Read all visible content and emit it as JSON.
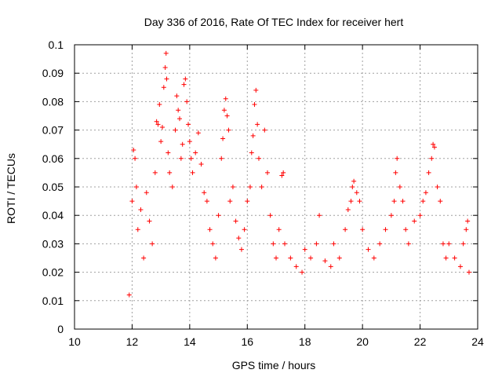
{
  "chart_data": {
    "type": "scatter",
    "title": "Day 336 of 2016, Rate Of TEC Index for receiver hert",
    "xlabel": "GPS time / hours",
    "ylabel": "ROTI / TECUs",
    "xlim": [
      10,
      24
    ],
    "ylim": [
      0,
      0.1
    ],
    "xticks": [
      10,
      12,
      14,
      16,
      18,
      20,
      22,
      24
    ],
    "xtick_labels": [
      "10",
      "12",
      "14",
      "16",
      "18",
      "20",
      "22",
      "24"
    ],
    "yticks": [
      0,
      0.01,
      0.02,
      0.03,
      0.04,
      0.05,
      0.06,
      0.07,
      0.08,
      0.09,
      0.1
    ],
    "ytick_labels": [
      "0",
      "0.01",
      "0.02",
      "0.03",
      "0.04",
      "0.05",
      "0.06",
      "0.07",
      "0.08",
      "0.09",
      "0.1"
    ],
    "grid": true,
    "marker": "plus",
    "series_color": "#ff0000",
    "series": [
      {
        "name": "ROTI",
        "points": [
          [
            11.9,
            0.012
          ],
          [
            12.0,
            0.045
          ],
          [
            12.05,
            0.063
          ],
          [
            12.1,
            0.06
          ],
          [
            12.15,
            0.05
          ],
          [
            12.2,
            0.035
          ],
          [
            12.3,
            0.042
          ],
          [
            12.4,
            0.025
          ],
          [
            12.5,
            0.048
          ],
          [
            12.6,
            0.038
          ],
          [
            12.7,
            0.03
          ],
          [
            12.8,
            0.055
          ],
          [
            12.85,
            0.073
          ],
          [
            12.9,
            0.072
          ],
          [
            12.95,
            0.079
          ],
          [
            13.0,
            0.066
          ],
          [
            13.05,
            0.071
          ],
          [
            13.1,
            0.085
          ],
          [
            13.15,
            0.092
          ],
          [
            13.18,
            0.097
          ],
          [
            13.2,
            0.088
          ],
          [
            13.25,
            0.062
          ],
          [
            13.3,
            0.055
          ],
          [
            13.4,
            0.05
          ],
          [
            13.5,
            0.07
          ],
          [
            13.55,
            0.082
          ],
          [
            13.6,
            0.077
          ],
          [
            13.65,
            0.074
          ],
          [
            13.7,
            0.06
          ],
          [
            13.75,
            0.065
          ],
          [
            13.8,
            0.086
          ],
          [
            13.85,
            0.088
          ],
          [
            13.9,
            0.08
          ],
          [
            13.95,
            0.072
          ],
          [
            14.0,
            0.066
          ],
          [
            14.05,
            0.06
          ],
          [
            14.1,
            0.055
          ],
          [
            14.2,
            0.062
          ],
          [
            14.3,
            0.069
          ],
          [
            14.4,
            0.058
          ],
          [
            14.5,
            0.048
          ],
          [
            14.6,
            0.045
          ],
          [
            14.7,
            0.035
          ],
          [
            14.8,
            0.03
          ],
          [
            14.9,
            0.025
          ],
          [
            15.0,
            0.04
          ],
          [
            15.1,
            0.06
          ],
          [
            15.15,
            0.067
          ],
          [
            15.2,
            0.077
          ],
          [
            15.25,
            0.081
          ],
          [
            15.3,
            0.075
          ],
          [
            15.35,
            0.07
          ],
          [
            15.4,
            0.045
          ],
          [
            15.5,
            0.05
          ],
          [
            15.6,
            0.038
          ],
          [
            15.7,
            0.032
          ],
          [
            15.8,
            0.028
          ],
          [
            15.9,
            0.035
          ],
          [
            16.0,
            0.045
          ],
          [
            16.1,
            0.05
          ],
          [
            16.15,
            0.062
          ],
          [
            16.2,
            0.068
          ],
          [
            16.25,
            0.079
          ],
          [
            16.3,
            0.084
          ],
          [
            16.35,
            0.072
          ],
          [
            16.4,
            0.06
          ],
          [
            16.5,
            0.05
          ],
          [
            16.6,
            0.07
          ],
          [
            16.7,
            0.055
          ],
          [
            16.8,
            0.04
          ],
          [
            16.9,
            0.03
          ],
          [
            17.0,
            0.025
          ],
          [
            17.1,
            0.035
          ],
          [
            17.2,
            0.054
          ],
          [
            17.25,
            0.055
          ],
          [
            17.3,
            0.03
          ],
          [
            17.5,
            0.025
          ],
          [
            17.7,
            0.022
          ],
          [
            17.9,
            0.02
          ],
          [
            18.0,
            0.028
          ],
          [
            18.2,
            0.025
          ],
          [
            18.4,
            0.03
          ],
          [
            18.5,
            0.04
          ],
          [
            18.7,
            0.024
          ],
          [
            18.9,
            0.022
          ],
          [
            19.0,
            0.03
          ],
          [
            19.2,
            0.025
          ],
          [
            19.4,
            0.035
          ],
          [
            19.5,
            0.042
          ],
          [
            19.6,
            0.045
          ],
          [
            19.65,
            0.05
          ],
          [
            19.7,
            0.052
          ],
          [
            19.8,
            0.048
          ],
          [
            19.9,
            0.045
          ],
          [
            20.0,
            0.035
          ],
          [
            20.2,
            0.028
          ],
          [
            20.4,
            0.025
          ],
          [
            20.6,
            0.03
          ],
          [
            20.8,
            0.035
          ],
          [
            21.0,
            0.04
          ],
          [
            21.1,
            0.045
          ],
          [
            21.15,
            0.055
          ],
          [
            21.2,
            0.06
          ],
          [
            21.3,
            0.05
          ],
          [
            21.4,
            0.045
          ],
          [
            21.5,
            0.035
          ],
          [
            21.6,
            0.03
          ],
          [
            21.8,
            0.038
          ],
          [
            22.0,
            0.04
          ],
          [
            22.1,
            0.045
          ],
          [
            22.2,
            0.048
          ],
          [
            22.3,
            0.055
          ],
          [
            22.4,
            0.06
          ],
          [
            22.45,
            0.065
          ],
          [
            22.5,
            0.064
          ],
          [
            22.6,
            0.05
          ],
          [
            22.7,
            0.045
          ],
          [
            22.8,
            0.03
          ],
          [
            22.9,
            0.025
          ],
          [
            23.0,
            0.03
          ],
          [
            23.2,
            0.025
          ],
          [
            23.4,
            0.022
          ],
          [
            23.5,
            0.03
          ],
          [
            23.6,
            0.035
          ],
          [
            23.65,
            0.038
          ],
          [
            23.7,
            0.02
          ]
        ]
      }
    ]
  }
}
